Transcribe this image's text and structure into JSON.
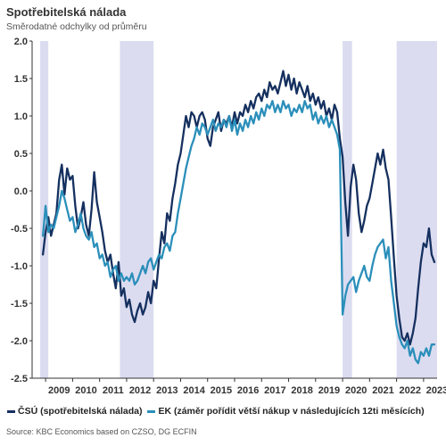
{
  "title": "Spotřebitelská nálada",
  "subtitle": "Směrodatné odchylky od průměru",
  "source": "Source: KBC Economics based on CZSO, DG ECFIN",
  "colors": {
    "csu": "#15305f",
    "ek": "#2b8fba",
    "recession": "#dcdcf0",
    "axis": "#333333",
    "grid": "#e6e6e6"
  },
  "chart_data": {
    "type": "line",
    "xlim": [
      2008.5,
      2023.5
    ],
    "ylim": [
      -2.5,
      2.0
    ],
    "yticks": [
      2.0,
      1.5,
      1.0,
      0.5,
      0.0,
      -0.5,
      -1.0,
      -1.5,
      -2.0,
      -2.5
    ],
    "ytick_labels": [
      "2.0",
      "1.5",
      "1.0",
      "0.5",
      "0.0",
      "-0.5",
      "-1.0",
      "-1.5",
      "-2.0",
      "-2.5"
    ],
    "xtick_labels": [
      "2009",
      "2010",
      "2011",
      "2012",
      "2013",
      "2014",
      "2015",
      "2016",
      "2017",
      "2018",
      "2019",
      "2020",
      "2021",
      "2022",
      "2023"
    ],
    "grid": false,
    "legend_position": "bottom",
    "shaded_periods": [
      [
        2008.8,
        2009.1
      ],
      [
        2011.75,
        2013.0
      ],
      [
        2020.0,
        2020.35
      ],
      [
        2022.0,
        2023.5
      ]
    ],
    "series": [
      {
        "name": "ČSÚ (spotřebitelská nálada)",
        "color": "#15305f",
        "points": [
          [
            2008.9,
            -0.85
          ],
          [
            2009.0,
            -0.55
          ],
          [
            2009.1,
            -0.35
          ],
          [
            2009.2,
            -0.6
          ],
          [
            2009.3,
            -0.45
          ],
          [
            2009.4,
            -0.3
          ],
          [
            2009.5,
            0.15
          ],
          [
            2009.6,
            0.35
          ],
          [
            2009.7,
            -0.05
          ],
          [
            2009.8,
            0.3
          ],
          [
            2009.9,
            0.15
          ],
          [
            2010.0,
            0.2
          ],
          [
            2010.1,
            -0.2
          ],
          [
            2010.2,
            -0.5
          ],
          [
            2010.3,
            -0.35
          ],
          [
            2010.4,
            -0.15
          ],
          [
            2010.5,
            -0.45
          ],
          [
            2010.6,
            -0.6
          ],
          [
            2010.7,
            -0.25
          ],
          [
            2010.8,
            0.25
          ],
          [
            2010.9,
            -0.15
          ],
          [
            2011.0,
            -0.35
          ],
          [
            2011.1,
            -0.55
          ],
          [
            2011.2,
            -0.8
          ],
          [
            2011.3,
            -0.95
          ],
          [
            2011.4,
            -0.85
          ],
          [
            2011.5,
            -1.1
          ],
          [
            2011.6,
            -1.3
          ],
          [
            2011.7,
            -0.95
          ],
          [
            2011.8,
            -1.4
          ],
          [
            2011.9,
            -1.3
          ],
          [
            2012.0,
            -1.55
          ],
          [
            2012.1,
            -1.45
          ],
          [
            2012.2,
            -1.65
          ],
          [
            2012.3,
            -1.75
          ],
          [
            2012.4,
            -1.6
          ],
          [
            2012.5,
            -1.5
          ],
          [
            2012.6,
            -1.65
          ],
          [
            2012.7,
            -1.55
          ],
          [
            2012.8,
            -1.35
          ],
          [
            2012.9,
            -1.5
          ],
          [
            2013.0,
            -1.2
          ],
          [
            2013.1,
            -1.3
          ],
          [
            2013.2,
            -0.9
          ],
          [
            2013.3,
            -0.55
          ],
          [
            2013.4,
            -0.7
          ],
          [
            2013.5,
            -0.3
          ],
          [
            2013.6,
            -0.4
          ],
          [
            2013.7,
            -0.1
          ],
          [
            2013.8,
            0.1
          ],
          [
            2013.9,
            0.35
          ],
          [
            2014.0,
            0.5
          ],
          [
            2014.1,
            0.75
          ],
          [
            2014.2,
            1.0
          ],
          [
            2014.3,
            0.85
          ],
          [
            2014.4,
            1.05
          ],
          [
            2014.5,
            1.0
          ],
          [
            2014.6,
            0.85
          ],
          [
            2014.7,
            1.0
          ],
          [
            2014.8,
            1.05
          ],
          [
            2014.9,
            0.95
          ],
          [
            2015.0,
            0.7
          ],
          [
            2015.1,
            0.6
          ],
          [
            2015.2,
            0.85
          ],
          [
            2015.3,
            0.95
          ],
          [
            2015.4,
            1.05
          ],
          [
            2015.5,
            0.8
          ],
          [
            2015.6,
            0.95
          ],
          [
            2015.7,
            0.9
          ],
          [
            2015.8,
            1.0
          ],
          [
            2015.9,
            0.85
          ],
          [
            2016.0,
            1.05
          ],
          [
            2016.1,
            0.9
          ],
          [
            2016.2,
            1.05
          ],
          [
            2016.3,
            1.0
          ],
          [
            2016.4,
            1.15
          ],
          [
            2016.5,
            1.05
          ],
          [
            2016.6,
            1.2
          ],
          [
            2016.7,
            1.1
          ],
          [
            2016.8,
            1.25
          ],
          [
            2016.9,
            1.3
          ],
          [
            2017.0,
            1.2
          ],
          [
            2017.1,
            1.35
          ],
          [
            2017.2,
            1.25
          ],
          [
            2017.3,
            1.45
          ],
          [
            2017.4,
            1.35
          ],
          [
            2017.5,
            1.4
          ],
          [
            2017.6,
            1.3
          ],
          [
            2017.7,
            1.45
          ],
          [
            2017.8,
            1.6
          ],
          [
            2017.9,
            1.4
          ],
          [
            2018.0,
            1.55
          ],
          [
            2018.1,
            1.35
          ],
          [
            2018.2,
            1.5
          ],
          [
            2018.3,
            1.3
          ],
          [
            2018.4,
            1.45
          ],
          [
            2018.5,
            1.35
          ],
          [
            2018.6,
            1.25
          ],
          [
            2018.7,
            1.4
          ],
          [
            2018.8,
            1.2
          ],
          [
            2018.9,
            1.3
          ],
          [
            2019.0,
            1.15
          ],
          [
            2019.1,
            1.25
          ],
          [
            2019.2,
            1.1
          ],
          [
            2019.3,
            1.2
          ],
          [
            2019.4,
            1.0
          ],
          [
            2019.5,
            1.1
          ],
          [
            2019.6,
            0.95
          ],
          [
            2019.7,
            1.15
          ],
          [
            2019.8,
            1.05
          ],
          [
            2019.9,
            0.7
          ],
          [
            2020.0,
            0.45
          ],
          [
            2020.1,
            -0.15
          ],
          [
            2020.2,
            -0.6
          ],
          [
            2020.3,
            0.05
          ],
          [
            2020.4,
            0.35
          ],
          [
            2020.5,
            0.15
          ],
          [
            2020.6,
            -0.3
          ],
          [
            2020.7,
            -0.55
          ],
          [
            2020.8,
            -0.4
          ],
          [
            2020.9,
            -0.2
          ],
          [
            2021.0,
            -0.1
          ],
          [
            2021.1,
            0.1
          ],
          [
            2021.2,
            0.3
          ],
          [
            2021.3,
            0.5
          ],
          [
            2021.4,
            0.35
          ],
          [
            2021.5,
            0.55
          ],
          [
            2021.6,
            0.3
          ],
          [
            2021.7,
            0.15
          ],
          [
            2021.8,
            -0.35
          ],
          [
            2021.9,
            -0.9
          ],
          [
            2022.0,
            -1.4
          ],
          [
            2022.1,
            -1.7
          ],
          [
            2022.2,
            -1.95
          ],
          [
            2022.3,
            -2.0
          ],
          [
            2022.4,
            -1.9
          ],
          [
            2022.5,
            -2.05
          ],
          [
            2022.6,
            -1.9
          ],
          [
            2022.7,
            -1.7
          ],
          [
            2022.8,
            -1.3
          ],
          [
            2022.9,
            -0.95
          ],
          [
            2023.0,
            -0.7
          ],
          [
            2023.1,
            -0.75
          ],
          [
            2023.2,
            -0.5
          ],
          [
            2023.3,
            -0.85
          ],
          [
            2023.4,
            -0.95
          ]
        ]
      },
      {
        "name": "EK (záměr pořídit větší nákup v následujících 12ti měsících)",
        "color": "#2b8fba",
        "points": [
          [
            2008.9,
            -0.6
          ],
          [
            2009.0,
            -0.2
          ],
          [
            2009.1,
            -0.55
          ],
          [
            2009.2,
            -0.45
          ],
          [
            2009.3,
            -0.5
          ],
          [
            2009.4,
            -0.35
          ],
          [
            2009.5,
            -0.2
          ],
          [
            2009.6,
            0.0
          ],
          [
            2009.7,
            -0.1
          ],
          [
            2009.8,
            -0.25
          ],
          [
            2009.9,
            -0.4
          ],
          [
            2010.0,
            -0.35
          ],
          [
            2010.1,
            -0.55
          ],
          [
            2010.2,
            -0.45
          ],
          [
            2010.3,
            -0.3
          ],
          [
            2010.4,
            -0.5
          ],
          [
            2010.5,
            -0.6
          ],
          [
            2010.6,
            -0.65
          ],
          [
            2010.7,
            -0.55
          ],
          [
            2010.8,
            -0.75
          ],
          [
            2010.9,
            -0.7
          ],
          [
            2011.0,
            -0.9
          ],
          [
            2011.1,
            -0.85
          ],
          [
            2011.2,
            -1.0
          ],
          [
            2011.3,
            -0.95
          ],
          [
            2011.4,
            -1.15
          ],
          [
            2011.5,
            -1.05
          ],
          [
            2011.6,
            -1.0
          ],
          [
            2011.7,
            -1.2
          ],
          [
            2011.8,
            -1.1
          ],
          [
            2011.9,
            -1.2
          ],
          [
            2012.0,
            -1.15
          ],
          [
            2012.1,
            -1.2
          ],
          [
            2012.2,
            -1.1
          ],
          [
            2012.3,
            -1.25
          ],
          [
            2012.4,
            -1.2
          ],
          [
            2012.5,
            -1.1
          ],
          [
            2012.6,
            -1.0
          ],
          [
            2012.7,
            -1.1
          ],
          [
            2012.8,
            -0.95
          ],
          [
            2012.9,
            -0.9
          ],
          [
            2013.0,
            -1.05
          ],
          [
            2013.1,
            -0.95
          ],
          [
            2013.2,
            -0.85
          ],
          [
            2013.3,
            -0.9
          ],
          [
            2013.4,
            -0.75
          ],
          [
            2013.5,
            -0.7
          ],
          [
            2013.6,
            -0.8
          ],
          [
            2013.7,
            -0.6
          ],
          [
            2013.8,
            -0.55
          ],
          [
            2013.9,
            -0.3
          ],
          [
            2014.0,
            -0.1
          ],
          [
            2014.1,
            0.1
          ],
          [
            2014.2,
            0.3
          ],
          [
            2014.3,
            0.45
          ],
          [
            2014.4,
            0.6
          ],
          [
            2014.5,
            0.7
          ],
          [
            2014.6,
            0.85
          ],
          [
            2014.7,
            0.75
          ],
          [
            2014.8,
            0.9
          ],
          [
            2014.9,
            0.85
          ],
          [
            2015.0,
            0.75
          ],
          [
            2015.1,
            0.85
          ],
          [
            2015.2,
            0.95
          ],
          [
            2015.3,
            0.8
          ],
          [
            2015.4,
            0.9
          ],
          [
            2015.5,
            0.85
          ],
          [
            2015.6,
            0.95
          ],
          [
            2015.7,
            0.85
          ],
          [
            2015.8,
            1.0
          ],
          [
            2015.9,
            0.8
          ],
          [
            2016.0,
            0.95
          ],
          [
            2016.1,
            0.75
          ],
          [
            2016.2,
            0.9
          ],
          [
            2016.3,
            0.8
          ],
          [
            2016.4,
            0.95
          ],
          [
            2016.5,
            0.85
          ],
          [
            2016.6,
            1.0
          ],
          [
            2016.7,
            0.9
          ],
          [
            2016.8,
            1.05
          ],
          [
            2016.9,
            0.95
          ],
          [
            2017.0,
            1.1
          ],
          [
            2017.1,
            1.0
          ],
          [
            2017.2,
            1.15
          ],
          [
            2017.3,
            1.1
          ],
          [
            2017.4,
            1.2
          ],
          [
            2017.5,
            1.05
          ],
          [
            2017.6,
            1.15
          ],
          [
            2017.7,
            1.05
          ],
          [
            2017.8,
            1.2
          ],
          [
            2017.9,
            1.1
          ],
          [
            2018.0,
            1.15
          ],
          [
            2018.1,
            1.0
          ],
          [
            2018.2,
            1.1
          ],
          [
            2018.3,
            1.05
          ],
          [
            2018.4,
            1.15
          ],
          [
            2018.5,
            1.05
          ],
          [
            2018.6,
            1.2
          ],
          [
            2018.7,
            1.1
          ],
          [
            2018.8,
            1.15
          ],
          [
            2018.9,
            0.95
          ],
          [
            2019.0,
            1.05
          ],
          [
            2019.1,
            0.9
          ],
          [
            2019.2,
            1.0
          ],
          [
            2019.3,
            0.9
          ],
          [
            2019.4,
            1.0
          ],
          [
            2019.5,
            0.85
          ],
          [
            2019.6,
            0.95
          ],
          [
            2019.7,
            0.85
          ],
          [
            2019.8,
            0.75
          ],
          [
            2019.9,
            0.55
          ],
          [
            2020.0,
            -1.65
          ],
          [
            2020.1,
            -1.4
          ],
          [
            2020.2,
            -1.25
          ],
          [
            2020.3,
            -1.2
          ],
          [
            2020.4,
            -1.15
          ],
          [
            2020.5,
            -1.35
          ],
          [
            2020.6,
            -1.2
          ],
          [
            2020.7,
            -1.1
          ],
          [
            2020.8,
            -1.0
          ],
          [
            2020.9,
            -1.15
          ],
          [
            2021.0,
            -1.2
          ],
          [
            2021.1,
            -1.0
          ],
          [
            2021.2,
            -0.85
          ],
          [
            2021.3,
            -0.75
          ],
          [
            2021.4,
            -0.7
          ],
          [
            2021.5,
            -0.65
          ],
          [
            2021.6,
            -0.9
          ],
          [
            2021.7,
            -0.75
          ],
          [
            2021.8,
            -1.2
          ],
          [
            2021.9,
            -1.5
          ],
          [
            2022.0,
            -1.8
          ],
          [
            2022.1,
            -1.95
          ],
          [
            2022.2,
            -2.05
          ],
          [
            2022.3,
            -2.1
          ],
          [
            2022.4,
            -2.0
          ],
          [
            2022.5,
            -2.2
          ],
          [
            2022.6,
            -2.1
          ],
          [
            2022.7,
            -2.25
          ],
          [
            2022.8,
            -2.3
          ],
          [
            2022.9,
            -2.15
          ],
          [
            2023.0,
            -2.2
          ],
          [
            2023.1,
            -2.1
          ],
          [
            2023.2,
            -2.2
          ],
          [
            2023.3,
            -2.05
          ],
          [
            2023.4,
            -2.05
          ]
        ]
      }
    ]
  }
}
